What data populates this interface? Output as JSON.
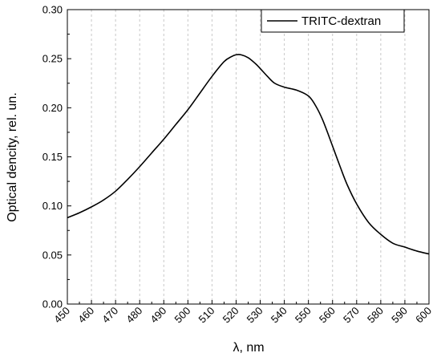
{
  "chart_data": {
    "type": "line",
    "xlabel": "λ, nm",
    "ylabel": "Optical dencity, rel. un.",
    "xlim": [
      450,
      600
    ],
    "ylim": [
      0.0,
      0.3
    ],
    "x_ticks": [
      "450",
      "460",
      "470",
      "480",
      "490",
      "500",
      "510",
      "520",
      "530",
      "540",
      "550",
      "560",
      "570",
      "580",
      "590",
      "600"
    ],
    "y_ticks": [
      "0.00",
      "0.05",
      "0.10",
      "0.15",
      "0.20",
      "0.25",
      "0.30"
    ],
    "grid": "vertical dashed",
    "legend_position": "top-right",
    "series": [
      {
        "name": "TRITC-dextran",
        "color": "#000000",
        "x": [
          450,
          455,
          460,
          465,
          470,
          475,
          480,
          485,
          490,
          495,
          500,
          505,
          510,
          515,
          518,
          520,
          522,
          525,
          528,
          530,
          533,
          536,
          540,
          545,
          550,
          553,
          556,
          560,
          563,
          566,
          570,
          575,
          580,
          585,
          590,
          595,
          600
        ],
        "y": [
          0.088,
          0.093,
          0.099,
          0.106,
          0.115,
          0.127,
          0.14,
          0.154,
          0.168,
          0.183,
          0.198,
          0.215,
          0.232,
          0.247,
          0.252,
          0.254,
          0.254,
          0.251,
          0.245,
          0.24,
          0.232,
          0.225,
          0.221,
          0.218,
          0.212,
          0.202,
          0.187,
          0.161,
          0.141,
          0.122,
          0.102,
          0.083,
          0.071,
          0.062,
          0.058,
          0.054,
          0.051
        ]
      }
    ]
  }
}
